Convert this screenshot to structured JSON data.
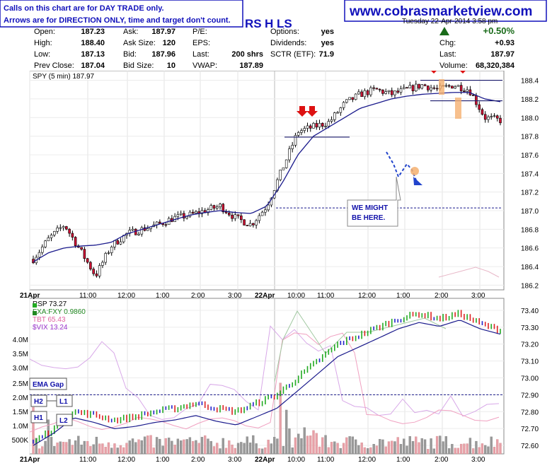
{
  "header": {
    "disclaimer_line1": "Calls on this chart are for DAY TRADE only.",
    "disclaimer_line2": "Arrows are for DIRECTION ONLY, time and target don't count.",
    "website": "www.cobrasmarketview.com",
    "date_text": "Tuesday   22-Apr-2014   3:58 pm",
    "symbol_partial": "RS",
    "hl_text": "H LS",
    "quote_fields": [
      {
        "label": "Open:",
        "value": "187.23"
      },
      {
        "label": "High:",
        "value": "188.40"
      },
      {
        "label": "Low:",
        "value": "187.13"
      },
      {
        "label": "Prev Close:",
        "value": "187.04"
      },
      {
        "label": "Ask:",
        "value": "187.97"
      },
      {
        "label": "Ask Size:",
        "value": "120"
      },
      {
        "label": "Bid:",
        "value": "187.96"
      },
      {
        "label": "Bid Size:",
        "value": "10"
      },
      {
        "label": "P/E:",
        "value": ""
      },
      {
        "label": "EPS:",
        "value": ""
      },
      {
        "label": "Last:",
        "value": "200 shrs"
      },
      {
        "label": "VWAP:",
        "value": "187.89"
      },
      {
        "label": "Options:",
        "value": "yes"
      },
      {
        "label": "Dividends:",
        "value": "yes"
      },
      {
        "label": "SCTR (ETF):",
        "value": "71.9"
      },
      {
        "label": "Chg:",
        "value": "+0.93"
      },
      {
        "label": "Last:",
        "value": "187.97"
      },
      {
        "label": "Volume:",
        "value": "68,320,384"
      }
    ],
    "pct_change": "+0.50%"
  },
  "annotations": {
    "callout_line1": "WE MIGHT",
    "callout_line2": "BE HERE.",
    "ema_gap": "EMA Gap",
    "h2": "H2",
    "h1": "H1",
    "l1": "L1",
    "l2": "L2"
  },
  "colors": {
    "up_candle": "#ffffff",
    "down_candle": "#cc1133",
    "ema": "#1a1a8c",
    "rsp_up": "#22aa22",
    "rsp_down": "#dd2222",
    "rsp_neutral": "#2222cc",
    "arrow_red": "#dd1111",
    "volume_up": "#999999",
    "volume_down": "#e8a0a8",
    "header_blue": "#1111bb"
  },
  "chart_data": [
    {
      "type": "candlestick",
      "title": "SPY (5 min) 187.97",
      "ylim": [
        186.15,
        188.45
      ],
      "yticks": [
        "188.4",
        "188.2",
        "188.0",
        "187.8",
        "187.6",
        "187.4",
        "187.2",
        "187.0",
        "186.8",
        "186.6",
        "186.4",
        "186.2"
      ],
      "xticks": [
        "21Apr",
        "11:00",
        "12:00",
        "1:00",
        "2:00",
        "3:00",
        "22Apr",
        "10:00",
        "11:00",
        "12:00",
        "1:00",
        "2:00",
        "3:00"
      ],
      "close_path": [
        186.48,
        186.7,
        186.85,
        186.58,
        186.3,
        186.62,
        186.75,
        186.8,
        186.85,
        186.92,
        186.95,
        187.0,
        187.05,
        186.92,
        186.85,
        187.05,
        187.45,
        187.85,
        187.9,
        187.95,
        188.15,
        188.25,
        188.3,
        188.25,
        188.3,
        188.35,
        188.3,
        188.35,
        188.3,
        188.0,
        187.97
      ],
      "ema_path": [
        186.45,
        186.55,
        186.6,
        186.62,
        186.63,
        186.66,
        186.75,
        186.8,
        186.85,
        186.9,
        186.95,
        186.98,
        187.0,
        186.98,
        186.97,
        187.05,
        187.3,
        187.6,
        187.8,
        187.9,
        188.0,
        188.1,
        188.15,
        188.2,
        188.23,
        188.25,
        188.26,
        188.27,
        188.27,
        188.2,
        188.17
      ],
      "resistance_levels": [
        188.4,
        188.18,
        187.79
      ],
      "target_level": 187.03
    },
    {
      "type": "line",
      "series": [
        {
          "name": "RSP 73.27"
        },
        {
          "name": "FXA:FXY 0.9860"
        },
        {
          "name": "TBT 65.43"
        },
        {
          "name": "$VIX 13.24"
        }
      ],
      "ylim": [
        72.55,
        73.45
      ],
      "yticks": [
        "73.40",
        "73.30",
        "73.20",
        "73.10",
        "73.00",
        "72.90",
        "72.80",
        "72.70",
        "72.60"
      ],
      "volume_ticks": [
        "4.0M",
        "3.5M",
        "3.0M",
        "2.5M",
        "2.0M",
        "1.5M",
        "1.0M",
        "500K"
      ],
      "xticks": [
        "21Apr",
        "11:00",
        "12:00",
        "1:00",
        "2:00",
        "3:00",
        "22Apr",
        "10:00",
        "11:00",
        "12:00",
        "1:00",
        "2:00",
        "3:00"
      ],
      "rsp_path": [
        72.62,
        72.7,
        72.8,
        72.78,
        72.75,
        72.77,
        72.8,
        72.82,
        72.85,
        72.82,
        72.8,
        72.85,
        72.9,
        73.0,
        73.1,
        73.2,
        73.25,
        73.3,
        73.35,
        73.38,
        73.35,
        73.38,
        73.32,
        73.28
      ],
      "gap_level": 72.9
    }
  ]
}
